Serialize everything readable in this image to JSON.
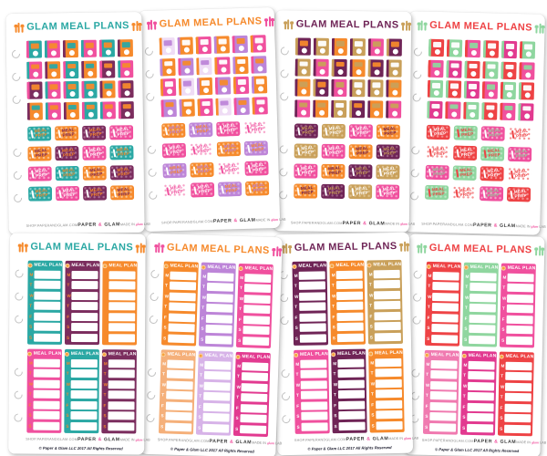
{
  "page": {
    "background": "#ffffff"
  },
  "branding": {
    "title": "GLAM MEAL PLANS",
    "footer": {
      "shop_url": "SHOP.PAPERANDGLAM.COM",
      "brand_left": "PAPER",
      "brand_amp": "&",
      "brand_right": "GLAM",
      "amp_color": "#f0509e",
      "made_in_prefix": "MADE IN",
      "made_in_script": "glam",
      "made_in_suffix": "LAB",
      "made_in_script_color": "#f0509e",
      "copyright": "© Paper & Glam LLC 2017 All Rights Reserved"
    }
  },
  "prep_label": {
    "line1": "MEAL",
    "line2": "PREP"
  },
  "tracker": {
    "label": "MEAL PLAN",
    "days": [
      "M",
      "T",
      "W",
      "T",
      "F",
      "S",
      "S"
    ],
    "icon_color": "#f6a23c"
  },
  "sheets": [
    {
      "type": "stickers",
      "header": {
        "text_color": "#2ba8a4",
        "utensil_color": "#f68a2c"
      },
      "book_colorways": [
        {
          "cover": "#2ba8a4",
          "spine": "#f0509e",
          "title": "#f68a2c"
        },
        {
          "cover": "#f0509e",
          "spine": "#2ba8a4",
          "title": "#f68a2c"
        },
        {
          "cover": "#f68a2c",
          "spine": "#7b2d5e",
          "title": "#2ba8a4"
        },
        {
          "cover": "#7b2d5e",
          "spine": "#f0509e",
          "title": "#f68a2c"
        }
      ],
      "book_pattern": [
        0,
        1,
        2,
        1,
        0,
        2,
        1,
        2,
        0,
        2,
        3,
        1,
        3,
        1,
        0,
        0,
        2,
        3,
        2,
        1,
        2,
        0,
        1,
        3
      ],
      "prep_colorways": [
        {
          "bg": "#2ba8a4",
          "dot": "#84d2cd",
          "text": "#f68a2c",
          "fork": "#ffffff"
        },
        {
          "bg": "#f68a2c",
          "dot": "#fac08a",
          "text": "#7b2d5e",
          "fork": "#ffffff"
        },
        {
          "bg": "#7b2d5e",
          "dot": "#aa6b93",
          "text": "#f68a2c",
          "fork": "#ffffff"
        },
        {
          "bg": "#f0509e",
          "dot": "#f7a2c9",
          "text": "#ffffff",
          "fork": "#ffffff"
        }
      ],
      "prep_pattern": [
        0,
        1,
        2,
        3,
        1,
        2,
        3,
        0,
        3,
        0,
        1,
        2,
        0,
        3,
        2,
        1
      ]
    },
    {
      "type": "stickers",
      "header": {
        "text_color": "#f68a2c",
        "utensil_color": "#f0509e"
      },
      "book_colorways": [
        {
          "cover": "#f68a2c",
          "spine": "#bd85d8",
          "title": "#ffffff"
        },
        {
          "cover": "#f0509e",
          "spine": "#f68a2c",
          "title": "#ffffff"
        },
        {
          "cover": "#bd85d8",
          "spine": "#f0509e",
          "title": "#f68a2c"
        },
        {
          "cover": "#efdcf5",
          "spine": "#f68a2c",
          "title": "#bd85d8"
        }
      ],
      "book_pattern": [
        3,
        0,
        1,
        0,
        2,
        1,
        0,
        2,
        3,
        1,
        0,
        2,
        1,
        3,
        0,
        2,
        1,
        0,
        2,
        0,
        1,
        3,
        2,
        1
      ],
      "prep_colorways": [
        {
          "bg": "#f68a2c",
          "dot": "#fac08a",
          "text": "#bd85d8",
          "fork": "#ffffff"
        },
        {
          "bg": "#bd85d8",
          "dot": "#d7b3e8",
          "text": "#f68a2c",
          "fork": "#ffffff"
        },
        {
          "bg": "#f0509e",
          "dot": "#f7a2c9",
          "text": "#ffffff",
          "fork": "#ffffff"
        },
        {
          "bg": "#ffffff",
          "dot": "#f7a2c9",
          "text": "#f0509e",
          "fork": "#f0509e"
        }
      ],
      "prep_pattern": [
        0,
        1,
        2,
        3,
        2,
        3,
        0,
        1,
        1,
        0,
        3,
        2,
        3,
        2,
        1,
        0
      ]
    },
    {
      "type": "stickers",
      "header": {
        "text_color": "#6f2456",
        "utensil_color": "#c9a05a"
      },
      "book_colorways": [
        {
          "cover": "#6f2456",
          "spine": "#c9a05a",
          "title": "#f68a2c"
        },
        {
          "cover": "#c9a05a",
          "spine": "#6f2456",
          "title": "#ffffff"
        },
        {
          "cover": "#f68a2c",
          "spine": "#6f2456",
          "title": "#c9a05a"
        },
        {
          "cover": "#f0509e",
          "spine": "#6f2456",
          "title": "#c9a05a"
        }
      ],
      "book_pattern": [
        0,
        1,
        2,
        1,
        3,
        0,
        1,
        3,
        0,
        2,
        0,
        1,
        2,
        0,
        3,
        1,
        1,
        2,
        3,
        2,
        1,
        0,
        2,
        3
      ],
      "prep_colorways": [
        {
          "bg": "#6f2456",
          "dot": "#9a5c83",
          "text": "#c9a05a",
          "fork": "#ffffff"
        },
        {
          "bg": "#c9a05a",
          "dot": "#ddc28e",
          "text": "#ffffff",
          "fork": "#ffffff"
        },
        {
          "bg": "#f0509e",
          "dot": "#f7a2c9",
          "text": "#ffffff",
          "fork": "#ffffff"
        },
        {
          "bg": "#f68a2c",
          "dot": "#fac08a",
          "text": "#6f2456",
          "fork": "#ffffff"
        }
      ],
      "prep_pattern": [
        0,
        1,
        2,
        3,
        1,
        2,
        3,
        0,
        2,
        3,
        0,
        1,
        3,
        0,
        1,
        2
      ]
    },
    {
      "type": "stickers",
      "header": {
        "text_color": "#ee4345",
        "utensil_color": "#8fd69f"
      },
      "book_colorways": [
        {
          "cover": "#ee4345",
          "spine": "#8fd69f",
          "title": "#ffffff"
        },
        {
          "cover": "#8fd69f",
          "spine": "#ee4345",
          "title": "#ffffff"
        },
        {
          "cover": "#f0509e",
          "spine": "#ee4345",
          "title": "#8fd69f"
        },
        {
          "cover": "#e23a90",
          "spine": "#8fd69f",
          "title": "#ffffff"
        }
      ],
      "book_pattern": [
        0,
        1,
        2,
        0,
        3,
        1,
        2,
        3,
        0,
        1,
        0,
        2,
        1,
        0,
        3,
        2,
        1,
        0,
        3,
        2,
        1,
        0,
        2,
        3
      ],
      "prep_colorways": [
        {
          "bg": "#ee4345",
          "dot": "#f58f90",
          "text": "#ffffff",
          "fork": "#ffffff"
        },
        {
          "bg": "#8fd69f",
          "dot": "#bce7c5",
          "text": "#ee4345",
          "fork": "#ee4345"
        },
        {
          "bg": "#f0509e",
          "dot": "#f7a2c9",
          "text": "#8fd69f",
          "fork": "#ffffff"
        },
        {
          "bg": "#ffffff",
          "dot": "#f58f90",
          "text": "#ee4345",
          "fork": "#ee4345"
        }
      ],
      "prep_pattern": [
        0,
        1,
        2,
        3,
        3,
        0,
        1,
        2,
        2,
        1,
        0,
        3,
        1,
        3,
        2,
        0
      ]
    },
    {
      "type": "trackers",
      "header": {
        "text_color": "#2ba8a4",
        "utensil_color": "#f68a2c"
      },
      "tracker_colors": [
        "#2ba8a4",
        "#7b2d5e",
        "#f68a2c",
        "#f0509e",
        "#2ba8a4",
        "#7b2d5e"
      ],
      "day_color": "#f68a2c"
    },
    {
      "type": "trackers",
      "header": {
        "text_color": "#f68a2c",
        "utensil_color": "#f0509e"
      },
      "tracker_colors": [
        "#f68a2c",
        "#bd85d8",
        "#f0509e",
        "#f5b07a",
        "#d7b3e8",
        "#e23a90"
      ],
      "day_color": "#ffffff"
    },
    {
      "type": "trackers",
      "header": {
        "text_color": "#6f2456",
        "utensil_color": "#c9a05a"
      },
      "tracker_colors": [
        "#6f2456",
        "#f68a2c",
        "#c9a05a",
        "#f0509e",
        "#6f2456",
        "#f68a2c"
      ],
      "day_color": "#ffffff"
    },
    {
      "type": "trackers",
      "header": {
        "text_color": "#ee4345",
        "utensil_color": "#8fd69f"
      },
      "tracker_colors": [
        "#ee4345",
        "#8fd69f",
        "#f0509e",
        "#f07ab0",
        "#e23a90",
        "#ee4345"
      ],
      "day_color": "#ffffff"
    }
  ]
}
